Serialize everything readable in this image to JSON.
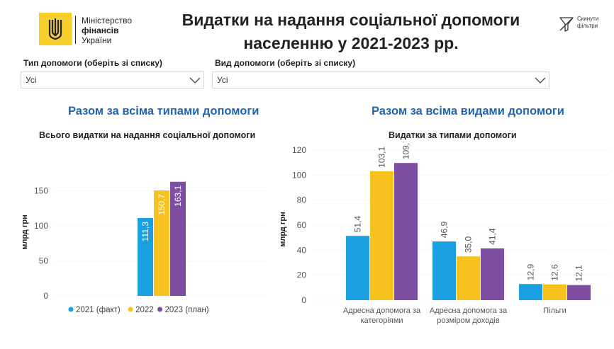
{
  "header": {
    "logo": {
      "line1": "Міністерство",
      "line2": "фінансів",
      "line3": "України",
      "mark": "tryzub-emblem"
    },
    "title_line1": "Видатки на надання соціальної допомоги",
    "title_line2": "населенню у 2021-2023 рр.",
    "reset_filters": {
      "line1": "Скинути",
      "line2": "фільтри",
      "icon": "filter-clear-icon"
    }
  },
  "filters": {
    "type": {
      "label": "Тип допомоги (оберіть зі списку)",
      "value": "Усі"
    },
    "kind": {
      "label": "Вид допомоги (оберіть зі списку)",
      "value": "Усі"
    }
  },
  "left": {
    "section_title": "Разом за всіма типами допомоги",
    "chart_title": "Всього видатки на надання соціальної допомоги"
  },
  "right": {
    "section_title": "Разом за всіма видами допомоги",
    "chart_title": "Видатки за типами допомоги"
  },
  "colors": {
    "accent": "#1f66b3",
    "logo": "#f7cf2b",
    "s2021": "#1aa0e0",
    "s2022": "#f7c21e",
    "s2023": "#7e4ea3"
  },
  "chart_data": [
    {
      "type": "bar",
      "title": "Всього видатки на надання соціальної допомоги",
      "ylabel": "млрд грн",
      "ylim": [
        0,
        175
      ],
      "yticks": [
        0,
        50,
        100,
        150
      ],
      "categories": [
        ""
      ],
      "series": [
        {
          "name": "2021 (факт)",
          "values": [
            111.3
          ],
          "labels": [
            "111,3"
          ]
        },
        {
          "name": "2022",
          "values": [
            150.7
          ],
          "labels": [
            "150,7"
          ]
        },
        {
          "name": "2023 (план)",
          "values": [
            163.1
          ],
          "labels": [
            "163,1"
          ]
        }
      ],
      "legend": "bottom"
    },
    {
      "type": "bar",
      "title": "Видатки за типами допомоги",
      "ylabel": "млрд грн",
      "ylim": [
        0,
        120
      ],
      "yticks": [
        0,
        20,
        40,
        60,
        80,
        100,
        120
      ],
      "categories": [
        "Адресна допомога за категоріями",
        "Адресна допомога за розміром доходів",
        "Пільги"
      ],
      "series": [
        {
          "name": "2021 (факт)",
          "values": [
            51.4,
            46.9,
            12.9
          ],
          "labels": [
            "51,4",
            "46,9",
            "12,9"
          ]
        },
        {
          "name": "2022",
          "values": [
            103.1,
            35.0,
            12.6
          ],
          "labels": [
            "103,1",
            "35,0",
            "12,6"
          ]
        },
        {
          "name": "2023 (план)",
          "values": [
            109.7,
            41.4,
            12.1
          ],
          "labels": [
            "109,7",
            "41,4",
            "12,1"
          ]
        }
      ]
    }
  ]
}
